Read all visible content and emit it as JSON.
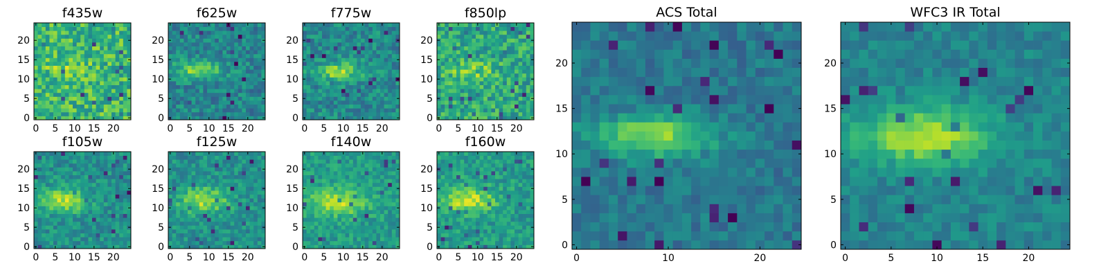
{
  "chart_data": [
    {
      "type": "heatmap",
      "title": "f435w",
      "xticks": [
        "0",
        "5",
        "10",
        "15",
        "20"
      ],
      "yticks": [
        "0",
        "5",
        "10",
        "15",
        "20"
      ],
      "xlim": [
        0,
        25
      ],
      "ylim": [
        0,
        25
      ],
      "colormap": "viridis",
      "feature": {
        "cx": 9,
        "cy": 13,
        "sx": 4.5,
        "sy": 1.8,
        "amp": 0.12,
        "base": 0.66,
        "noise": 0.2
      }
    },
    {
      "type": "heatmap",
      "title": "f625w",
      "xticks": [
        "0",
        "5",
        "10",
        "15",
        "20"
      ],
      "yticks": [
        "0",
        "5",
        "10",
        "15",
        "20"
      ],
      "xlim": [
        0,
        25
      ],
      "ylim": [
        0,
        25
      ],
      "colormap": "viridis",
      "feature": {
        "cx": 8,
        "cy": 13,
        "sx": 4.5,
        "sy": 1.7,
        "amp": 0.38,
        "base": 0.45,
        "noise": 0.15
      }
    },
    {
      "type": "heatmap",
      "title": "f775w",
      "xticks": [
        "0",
        "5",
        "10",
        "15",
        "20"
      ],
      "yticks": [
        "0",
        "5",
        "10",
        "15",
        "20"
      ],
      "xlim": [
        0,
        25
      ],
      "ylim": [
        0,
        25
      ],
      "colormap": "viridis",
      "feature": {
        "cx": 9,
        "cy": 12.5,
        "sx": 4.5,
        "sy": 1.7,
        "amp": 0.36,
        "base": 0.47,
        "noise": 0.15
      }
    },
    {
      "type": "heatmap",
      "title": "f850lp",
      "xticks": [
        "0",
        "5",
        "10",
        "15",
        "20"
      ],
      "yticks": [
        "0",
        "5",
        "10",
        "15",
        "20"
      ],
      "xlim": [
        0,
        25
      ],
      "ylim": [
        0,
        25
      ],
      "colormap": "viridis",
      "feature": {
        "cx": 9,
        "cy": 12.5,
        "sx": 4.5,
        "sy": 1.8,
        "amp": 0.2,
        "base": 0.6,
        "noise": 0.18
      }
    },
    {
      "type": "heatmap",
      "title": "f105w",
      "xticks": [
        "0",
        "5",
        "10",
        "15",
        "20"
      ],
      "yticks": [
        "0",
        "5",
        "10",
        "15",
        "20"
      ],
      "xlim": [
        0,
        25
      ],
      "ylim": [
        0,
        25
      ],
      "colormap": "viridis",
      "feature": {
        "cx": 8,
        "cy": 12.5,
        "sx": 4.2,
        "sy": 2.2,
        "amp": 0.38,
        "base": 0.5,
        "noise": 0.13
      }
    },
    {
      "type": "heatmap",
      "title": "f125w",
      "xticks": [
        "0",
        "5",
        "10",
        "15",
        "20"
      ],
      "yticks": [
        "0",
        "5",
        "10",
        "15",
        "20"
      ],
      "xlim": [
        0,
        25
      ],
      "ylim": [
        0,
        25
      ],
      "colormap": "viridis",
      "feature": {
        "cx": 9,
        "cy": 12.5,
        "sx": 4.5,
        "sy": 2.2,
        "amp": 0.38,
        "base": 0.5,
        "noise": 0.13
      }
    },
    {
      "type": "heatmap",
      "title": "f140w",
      "xticks": [
        "0",
        "5",
        "10",
        "15",
        "20"
      ],
      "yticks": [
        "0",
        "5",
        "10",
        "15",
        "20"
      ],
      "xlim": [
        0,
        25
      ],
      "ylim": [
        0,
        25
      ],
      "colormap": "viridis",
      "feature": {
        "cx": 9,
        "cy": 12,
        "sx": 5,
        "sy": 2.3,
        "amp": 0.38,
        "base": 0.55,
        "noise": 0.12
      }
    },
    {
      "type": "heatmap",
      "title": "f160w",
      "xticks": [
        "0",
        "5",
        "10",
        "15",
        "20"
      ],
      "yticks": [
        "0",
        "5",
        "10",
        "15",
        "20"
      ],
      "xlim": [
        0,
        25
      ],
      "ylim": [
        0,
        25
      ],
      "colormap": "viridis",
      "feature": {
        "cx": 8,
        "cy": 12.5,
        "sx": 5,
        "sy": 2.3,
        "amp": 0.35,
        "base": 0.55,
        "noise": 0.13
      }
    },
    {
      "type": "heatmap",
      "title": "ACS Total",
      "xticks": [
        "0",
        "10",
        "20"
      ],
      "yticks": [
        "0",
        "5",
        "10",
        "15",
        "20"
      ],
      "xlim": [
        0,
        25
      ],
      "ylim": [
        0,
        25
      ],
      "colormap": "viridis",
      "feature": {
        "cx": 9,
        "cy": 12.5,
        "sx": 4.5,
        "sy": 1.6,
        "amp": 0.45,
        "base": 0.4,
        "noise": 0.1
      }
    },
    {
      "type": "heatmap",
      "title": "WFC3 IR Total",
      "xticks": [
        "0",
        "5",
        "10",
        "15",
        "20"
      ],
      "yticks": [
        "0",
        "5",
        "10",
        "15",
        "20"
      ],
      "xlim": [
        0,
        25
      ],
      "ylim": [
        0,
        25
      ],
      "colormap": "viridis",
      "feature": {
        "cx": 9,
        "cy": 12.5,
        "sx": 5,
        "sy": 2.1,
        "amp": 0.45,
        "base": 0.45,
        "noise": 0.09
      }
    }
  ]
}
